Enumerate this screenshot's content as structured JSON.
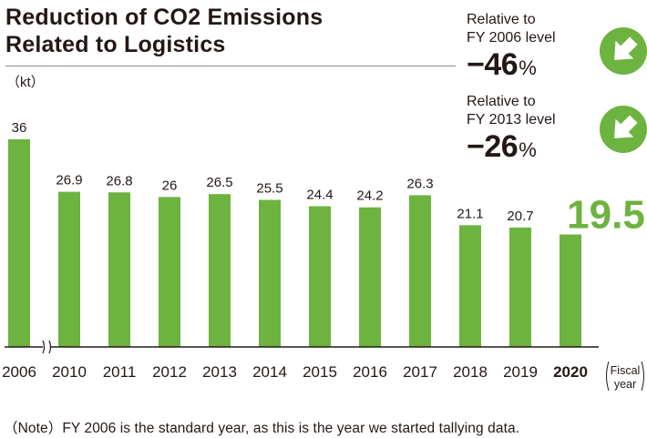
{
  "title": [
    "Reduction of CO2 Emissions",
    "Related to Logistics"
  ],
  "unit": "（kt）",
  "callouts": [
    {
      "label1": "Relative to",
      "label2": "FY 2006 level",
      "value": "−46",
      "pct": "%",
      "icon": "arrow-down-right-icon"
    },
    {
      "label1": "Relative to",
      "label2": "FY 2013 level",
      "value": "−26",
      "pct": "%",
      "icon": "arrow-down-right-icon"
    }
  ],
  "note": "（Note）FY 2006 is the standard year, as this is the year we started tallying data.",
  "colors": {
    "bar": "#6db33f",
    "highlight_label": "#6db33f",
    "text": "#231815"
  },
  "chart_data": {
    "type": "bar",
    "categories": [
      "2006",
      "2010",
      "2011",
      "2012",
      "2013",
      "2014",
      "2015",
      "2016",
      "2017",
      "2018",
      "2019",
      "2020"
    ],
    "values": [
      36,
      26.9,
      26.8,
      26,
      26.5,
      25.5,
      24.4,
      24.2,
      26.3,
      21.1,
      20.7,
      19.5
    ],
    "value_labels": [
      "36",
      "26.9",
      "26.8",
      "26",
      "26.5",
      "25.5",
      "24.4",
      "24.2",
      "26.3",
      "21.1",
      "20.7",
      "19.5"
    ],
    "highlight_category": "2020",
    "x_unit_label": [
      "Fiscal",
      "year"
    ],
    "axis_break_after": "2006",
    "ylabel": "（kt）",
    "ylim": [
      0,
      36
    ],
    "grid": false,
    "legend": "none"
  }
}
